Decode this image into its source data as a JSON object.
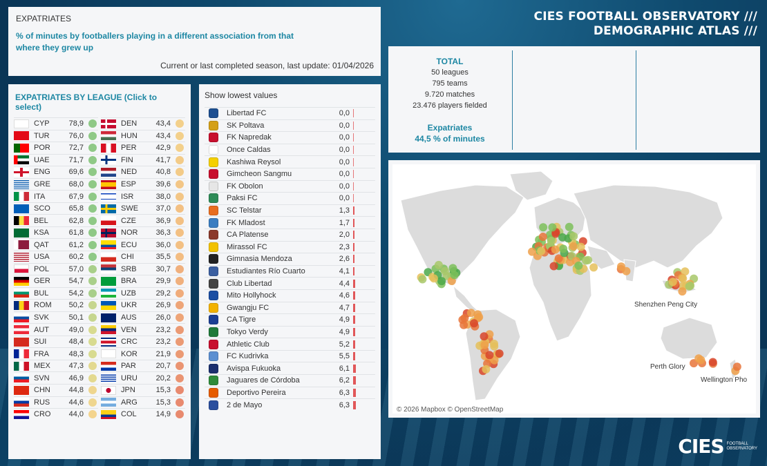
{
  "intro": {
    "label": "EXPATRIATES",
    "subtitle": "% of minutes by footballers playing in a different association from that where they grew up",
    "update": "Current or last completed season, last update: 01/04/2026"
  },
  "title": {
    "line1": "CIES FOOTBALL OBSERVATORY ///",
    "line2": "DEMOGRAPHIC ATLAS ///"
  },
  "total": {
    "heading": "TOTAL",
    "leagues": "50 leagues",
    "teams": "795 teams",
    "matches": "9.720 matches",
    "players": "23.476 players fielded",
    "exp_label": "Expatriates",
    "exp_value": "44,5 % of minutes"
  },
  "leagues": {
    "heading": "EXPATRIATES BY LEAGUE (Click to select)",
    "col1": [
      {
        "code": "CYP",
        "value": "78,9",
        "dot": "#8fc986"
      },
      {
        "code": "TUR",
        "value": "76,0",
        "dot": "#8fc986"
      },
      {
        "code": "POR",
        "value": "72,7",
        "dot": "#8fc986"
      },
      {
        "code": "UAE",
        "value": "71,7",
        "dot": "#8fc986"
      },
      {
        "code": "ENG",
        "value": "69,6",
        "dot": "#8fc986"
      },
      {
        "code": "GRE",
        "value": "68,0",
        "dot": "#8fc986"
      },
      {
        "code": "ITA",
        "value": "67,9",
        "dot": "#8fc986"
      },
      {
        "code": "SCO",
        "value": "65,8",
        "dot": "#8fc986"
      },
      {
        "code": "BEL",
        "value": "62,8",
        "dot": "#8fc986"
      },
      {
        "code": "KSA",
        "value": "61,8",
        "dot": "#8fc986"
      },
      {
        "code": "QAT",
        "value": "61,2",
        "dot": "#8fc986"
      },
      {
        "code": "USA",
        "value": "60,2",
        "dot": "#8fc986"
      },
      {
        "code": "POL",
        "value": "57,0",
        "dot": "#a9cf8a"
      },
      {
        "code": "GER",
        "value": "54,7",
        "dot": "#a9cf8a"
      },
      {
        "code": "BUL",
        "value": "54,2",
        "dot": "#a9cf8a"
      },
      {
        "code": "ROM",
        "value": "50,2",
        "dot": "#c6d68e"
      },
      {
        "code": "SVK",
        "value": "50,1",
        "dot": "#c6d68e"
      },
      {
        "code": "AUT",
        "value": "49,0",
        "dot": "#d8db90"
      },
      {
        "code": "SUI",
        "value": "48,4",
        "dot": "#d8db90"
      },
      {
        "code": "FRA",
        "value": "48,3",
        "dot": "#d8db90"
      },
      {
        "code": "MEX",
        "value": "47,3",
        "dot": "#e3d98f"
      },
      {
        "code": "SVN",
        "value": "46,9",
        "dot": "#e3d98f"
      },
      {
        "code": "CHN",
        "value": "44,8",
        "dot": "#efd68f"
      },
      {
        "code": "RUS",
        "value": "44,6",
        "dot": "#efd68f"
      },
      {
        "code": "CRO",
        "value": "44,0",
        "dot": "#f3d48e"
      }
    ],
    "col2": [
      {
        "code": "DEN",
        "value": "43,4",
        "dot": "#f3d08b"
      },
      {
        "code": "HUN",
        "value": "43,4",
        "dot": "#f3d08b"
      },
      {
        "code": "PER",
        "value": "42,9",
        "dot": "#f3d08b"
      },
      {
        "code": "FIN",
        "value": "41,7",
        "dot": "#f3cb88"
      },
      {
        "code": "NED",
        "value": "40,8",
        "dot": "#f3cb88"
      },
      {
        "code": "ESP",
        "value": "39,6",
        "dot": "#f3c686"
      },
      {
        "code": "ISR",
        "value": "38,0",
        "dot": "#f3c686"
      },
      {
        "code": "SWE",
        "value": "37,0",
        "dot": "#f3c083"
      },
      {
        "code": "CZE",
        "value": "36,9",
        "dot": "#f3c083"
      },
      {
        "code": "NOR",
        "value": "36,3",
        "dot": "#f3c083"
      },
      {
        "code": "ECU",
        "value": "36,0",
        "dot": "#f3c083"
      },
      {
        "code": "CHI",
        "value": "35,5",
        "dot": "#f3bd82"
      },
      {
        "code": "SRB",
        "value": "30,7",
        "dot": "#f0b07d"
      },
      {
        "code": "BRA",
        "value": "29,9",
        "dot": "#f0b07d"
      },
      {
        "code": "UZB",
        "value": "29,2",
        "dot": "#f0ac7b"
      },
      {
        "code": "UKR",
        "value": "26,9",
        "dot": "#eea578"
      },
      {
        "code": "AUS",
        "value": "26,0",
        "dot": "#eea578"
      },
      {
        "code": "VEN",
        "value": "23,2",
        "dot": "#eb9a74"
      },
      {
        "code": "CRC",
        "value": "23,2",
        "dot": "#eb9a74"
      },
      {
        "code": "KOR",
        "value": "21,9",
        "dot": "#eb9a74"
      },
      {
        "code": "PAR",
        "value": "20,7",
        "dot": "#ea9472"
      },
      {
        "code": "URU",
        "value": "20,2",
        "dot": "#ea9472"
      },
      {
        "code": "JPN",
        "value": "15,3",
        "dot": "#e88a6f"
      },
      {
        "code": "ARG",
        "value": "15,3",
        "dot": "#e88a6f"
      },
      {
        "code": "COL",
        "value": "14,9",
        "dot": "#e88a6f"
      }
    ]
  },
  "clubs": {
    "heading": "Show lowest values",
    "rows": [
      {
        "name": "Libertad FC",
        "value": "0,0",
        "crest": "#1d4f91",
        "bar": 0.0
      },
      {
        "name": "SK Poltava",
        "value": "0,0",
        "crest": "#d4a017",
        "bar": 0.0
      },
      {
        "name": "FK Napredak",
        "value": "0,0",
        "crest": "#c8102e",
        "bar": 0.0
      },
      {
        "name": "Once Caldas",
        "value": "0,0",
        "crest": "#ffffff",
        "bar": 0.0
      },
      {
        "name": "Kashiwa Reysol",
        "value": "0,0",
        "crest": "#f5d000",
        "bar": 0.0
      },
      {
        "name": "Gimcheon Sangmu",
        "value": "0,0",
        "crest": "#c8102e",
        "bar": 0.0
      },
      {
        "name": "FK Obolon",
        "value": "0,0",
        "crest": "#e6e6e6",
        "bar": 0.0
      },
      {
        "name": "Paksi FC",
        "value": "0,0",
        "crest": "#2e8b57",
        "bar": 0.0
      },
      {
        "name": "SC Telstar",
        "value": "1,3",
        "crest": "#e86d1f",
        "bar": 1.3
      },
      {
        "name": "FK Mladost",
        "value": "1,7",
        "crest": "#3a7dc1",
        "bar": 1.7
      },
      {
        "name": "CA Platense",
        "value": "2,0",
        "crest": "#8b3a2b",
        "bar": 2.0
      },
      {
        "name": "Mirassol FC",
        "value": "2,3",
        "crest": "#f2c200",
        "bar": 2.3
      },
      {
        "name": "Gimnasia Mendoza",
        "value": "2,6",
        "crest": "#222222",
        "bar": 2.6
      },
      {
        "name": "Estudiantes Río Cuarto",
        "value": "4,1",
        "crest": "#3b5fa0",
        "bar": 4.1
      },
      {
        "name": "Club Libertad",
        "value": "4,4",
        "crest": "#444444",
        "bar": 4.4
      },
      {
        "name": "Mito Hollyhock",
        "value": "4,6",
        "crest": "#1b4ea3",
        "bar": 4.6
      },
      {
        "name": "Gwangju FC",
        "value": "4,7",
        "crest": "#f2b200",
        "bar": 4.7
      },
      {
        "name": "CA Tigre",
        "value": "4,9",
        "crest": "#1c3f94",
        "bar": 4.9
      },
      {
        "name": "Tokyo Verdy",
        "value": "4,9",
        "crest": "#1f7a3a",
        "bar": 4.9
      },
      {
        "name": "Athletic Club",
        "value": "5,2",
        "crest": "#c8102e",
        "bar": 5.2
      },
      {
        "name": "FC Kudrivka",
        "value": "5,5",
        "crest": "#5b8fd1",
        "bar": 5.5
      },
      {
        "name": "Avispa Fukuoka",
        "value": "6,1",
        "crest": "#1b2f6e",
        "bar": 6.1
      },
      {
        "name": "Jaguares de Córdoba",
        "value": "6,2",
        "crest": "#2e8b3a",
        "bar": 6.2
      },
      {
        "name": "Deportivo Pereira",
        "value": "6,3",
        "crest": "#e65c00",
        "bar": 6.3
      },
      {
        "name": "2 de Mayo",
        "value": "6,3",
        "crest": "#2b4f9e",
        "bar": 6.3
      }
    ]
  },
  "map": {
    "labels": {
      "shenzhen": "Shenzhen Peng City",
      "perth": "Perth Glory",
      "wellington": "Wellington Pho"
    },
    "attribution": "© 2026 Mapbox © OpenStreetMap"
  },
  "logo": {
    "text": "CIES",
    "sub1": "FOOTBALL",
    "sub2": "OBSERVATORY"
  }
}
